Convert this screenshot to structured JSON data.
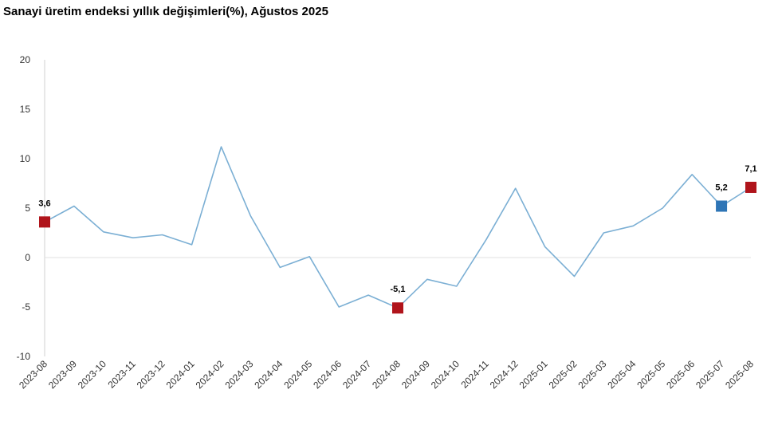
{
  "chart_data": {
    "type": "line",
    "title": "Sanayi üretim endeksi yıllık değişimleri(%), Ağustos 2025",
    "xlabel": "",
    "ylabel": "",
    "ylim": [
      -10,
      20
    ],
    "yticks": [
      "-10",
      "-5",
      "0",
      "5",
      "10",
      "15",
      "20"
    ],
    "ytick_values": [
      -10,
      -5,
      0,
      5,
      10,
      15,
      20
    ],
    "grid": false,
    "legend": "none",
    "line_color": "#7BAFD4",
    "categories": [
      "2023-08",
      "2023-09",
      "2023-10",
      "2023-11",
      "2023-12",
      "2024-01",
      "2024-02",
      "2024-03",
      "2024-04",
      "2024-05",
      "2024-06",
      "2024-07",
      "2024-08",
      "2024-09",
      "2024-10",
      "2024-11",
      "2024-12",
      "2025-01",
      "2025-02",
      "2025-03",
      "2025-04",
      "2025-05",
      "2025-06",
      "2025-07",
      "2025-08"
    ],
    "values": [
      3.6,
      5.2,
      2.6,
      2.0,
      2.3,
      1.3,
      11.2,
      4.2,
      -1.0,
      0.1,
      -5.0,
      -3.8,
      -5.1,
      -2.2,
      -2.9,
      1.8,
      7.0,
      1.1,
      -1.9,
      2.5,
      3.2,
      5.0,
      8.4,
      5.2,
      7.1
    ],
    "highlights": [
      {
        "index": 0,
        "label": "3,6",
        "color": "#B0141B"
      },
      {
        "index": 12,
        "label": "-5,1",
        "color": "#B0141B"
      },
      {
        "index": 23,
        "label": "5,2",
        "color": "#2E75B6"
      },
      {
        "index": 24,
        "label": "7,1",
        "color": "#B0141B"
      }
    ]
  }
}
